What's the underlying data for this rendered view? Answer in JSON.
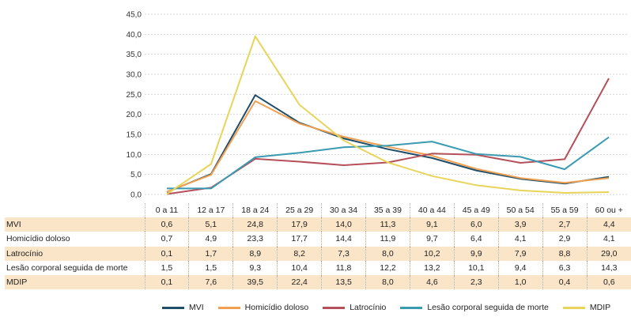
{
  "chart_data": {
    "type": "line",
    "categories": [
      "0 a 11",
      "12 a 17",
      "18 a 24",
      "25 a 29",
      "30 a 34",
      "35 a 39",
      "40 a 44",
      "45 a 49",
      "50 a 54",
      "55 a 59",
      "60 ou +"
    ],
    "y_ticks": [
      "0,0",
      "5,0",
      "10,0",
      "15,0",
      "20,0",
      "25,0",
      "30,0",
      "35,0",
      "40,0",
      "45,0"
    ],
    "ylim": [
      0,
      45
    ],
    "grid": true,
    "legend_position": "bottom",
    "series": [
      {
        "name": "MVI",
        "color": "#1f4e6b",
        "values": [
          0.6,
          5.1,
          24.8,
          17.9,
          14.0,
          11.3,
          9.1,
          6.0,
          3.9,
          2.7,
          4.4
        ],
        "labels": [
          "0,6",
          "5,1",
          "24,8",
          "17,9",
          "14,0",
          "11,3",
          "9,1",
          "6,0",
          "3,9",
          "2,7",
          "4,4"
        ],
        "shaded": true
      },
      {
        "name": "Homicídio doloso",
        "color": "#f0a050",
        "values": [
          0.7,
          4.9,
          23.3,
          17.7,
          14.4,
          11.9,
          9.7,
          6.4,
          4.1,
          2.9,
          4.1
        ],
        "labels": [
          "0,7",
          "4,9",
          "23,3",
          "17,7",
          "14,4",
          "11,9",
          "9,7",
          "6,4",
          "4,1",
          "2,9",
          "4,1"
        ],
        "shaded": false
      },
      {
        "name": "Latrocínio",
        "color": "#b5505a",
        "values": [
          0.1,
          1.7,
          8.9,
          8.2,
          7.3,
          8.0,
          10.2,
          9.9,
          7.9,
          8.8,
          29.0
        ],
        "labels": [
          "0,1",
          "1,7",
          "8,9",
          "8,2",
          "7,3",
          "8,0",
          "10,2",
          "9,9",
          "7,9",
          "8,8",
          "29,0"
        ],
        "shaded": true
      },
      {
        "name": "Lesão corporal seguida de morte",
        "color": "#3a9ab0",
        "values": [
          1.5,
          1.5,
          9.3,
          10.4,
          11.8,
          12.2,
          13.2,
          10.1,
          9.4,
          6.3,
          14.3
        ],
        "labels": [
          "1,5",
          "1,5",
          "9,3",
          "10,4",
          "11,8",
          "12,2",
          "13,2",
          "10,1",
          "9,4",
          "6,3",
          "14,3"
        ],
        "shaded": false
      },
      {
        "name": "MDIP",
        "color": "#e8d45a",
        "values": [
          0.1,
          7.6,
          39.5,
          22.4,
          13.5,
          8.0,
          4.6,
          2.3,
          1.0,
          0.4,
          0.6
        ],
        "labels": [
          "0,1",
          "7,6",
          "39,5",
          "22,4",
          "13,5",
          "8,0",
          "4,6",
          "2,3",
          "1,0",
          "0,4",
          "0,6"
        ],
        "shaded": true
      }
    ]
  }
}
